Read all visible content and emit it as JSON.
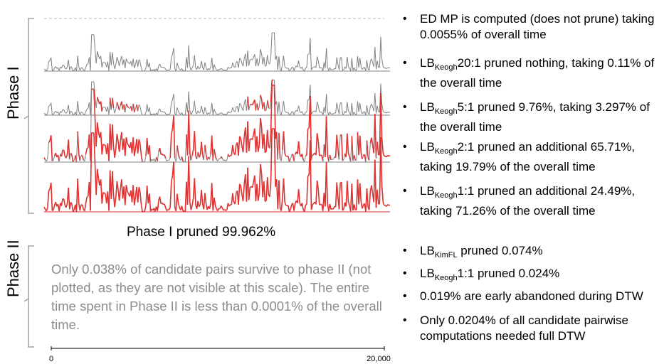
{
  "labels": {
    "phase1": "Phase I",
    "phase2": "Phase II"
  },
  "phase1_summary": "Phase I pruned 99.962%",
  "phase2_note": "Only 0.038% of candidate pairs survive to phase II (not plotted, as they are not visible at this scale). The entire time spent in Phase II is less than 0.0001% of the overall time.",
  "axis": {
    "x_min_label": "0",
    "x_max_label": "20,000"
  },
  "colors": {
    "series_gray": "#808080",
    "series_red": "#e03030",
    "bracket": "#a0a0a0",
    "note_gray": "#8c8c8c"
  },
  "phase1_bullets": [
    {
      "prefix": "ED MP is computed (does not prune) taking 0.0055% of overall time",
      "sub": "",
      "rest": ""
    },
    {
      "prefix": "LB",
      "sub": "Keogh",
      "rest": "20:1 pruned nothing, taking 0.11% of the overall time"
    },
    {
      "prefix": "LB",
      "sub": "Keogh",
      "rest": "5:1 pruned 9.76%, taking 3.297% of the overall time"
    },
    {
      "prefix": "LB",
      "sub": "Keogh",
      "rest": "2:1 pruned an additional 65.71%, taking 19.79% of the overall time"
    },
    {
      "prefix": "LB",
      "sub": "Keogh",
      "rest": "1:1 pruned an additional 24.49%, taking 71.26% of the overall time"
    }
  ],
  "phase2_bullets": [
    {
      "prefix": "LB",
      "sub": "KimFL",
      "rest": " pruned 0.074%"
    },
    {
      "prefix": "LB",
      "sub": "Keogh",
      "rest": "1:1 pruned 0.024%"
    },
    {
      "prefix": "0.019% are early abandoned during DTW",
      "sub": "",
      "rest": ""
    },
    {
      "prefix": "Only 0.0204% of all candidate pairwise computations needed full DTW",
      "sub": "",
      "rest": ""
    }
  ],
  "series_rows": [
    {
      "name": "ed-mp",
      "red_fraction": 0.0
    },
    {
      "name": "lb-keogh-20-1",
      "red_fraction": 0.0
    },
    {
      "name": "lb-keogh-5-1",
      "red_fraction": 0.0976
    },
    {
      "name": "lb-keogh-2-1",
      "red_fraction": 0.7547
    },
    {
      "name": "lb-keogh-1-1",
      "red_fraction": 1.0
    }
  ]
}
